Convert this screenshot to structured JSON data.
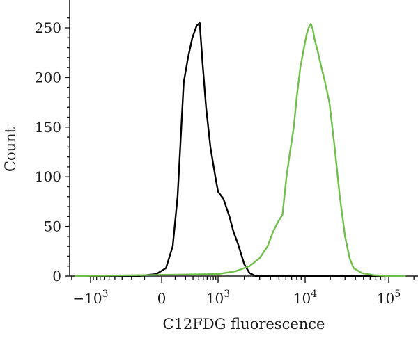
{
  "chart_data": {
    "type": "line",
    "xlabel": "C12FDG fluorescence",
    "ylabel": "Count",
    "x_scale": "biexponential",
    "y_scale": "linear",
    "ylim": [
      0,
      270
    ],
    "yticks": [
      0,
      50,
      100,
      150,
      200,
      250
    ],
    "xticks": [
      {
        "value": -1000,
        "base": "−10",
        "exp": "3"
      },
      {
        "value": 0,
        "base": "0",
        "exp": ""
      },
      {
        "value": 1000,
        "base": "10",
        "exp": "3"
      },
      {
        "value": 10000,
        "base": "10",
        "exp": "4"
      },
      {
        "value": 100000,
        "base": "10",
        "exp": "5"
      }
    ],
    "grid": false,
    "legend": "none",
    "series": [
      {
        "color": "#000000",
        "points": [
          [
            -1800,
            0
          ],
          [
            -150,
            0
          ],
          [
            -30,
            2
          ],
          [
            30,
            8
          ],
          [
            80,
            30
          ],
          [
            120,
            80
          ],
          [
            150,
            140
          ],
          [
            180,
            195
          ],
          [
            230,
            220
          ],
          [
            290,
            240
          ],
          [
            360,
            252
          ],
          [
            420,
            255
          ],
          [
            480,
            215
          ],
          [
            570,
            170
          ],
          [
            700,
            130
          ],
          [
            880,
            100
          ],
          [
            1000,
            85
          ],
          [
            1150,
            78
          ],
          [
            1350,
            60
          ],
          [
            1500,
            45
          ],
          [
            1700,
            32
          ],
          [
            2000,
            12
          ],
          [
            2300,
            3
          ],
          [
            2700,
            0
          ],
          [
            160000,
            0
          ]
        ]
      },
      {
        "color": "#6fbf4a",
        "points": [
          [
            -1800,
            0
          ],
          [
            1000,
            2
          ],
          [
            1600,
            5
          ],
          [
            2300,
            10
          ],
          [
            3000,
            18
          ],
          [
            3700,
            30
          ],
          [
            4300,
            45
          ],
          [
            4900,
            55
          ],
          [
            5500,
            62
          ],
          [
            6100,
            100
          ],
          [
            6700,
            125
          ],
          [
            7400,
            150
          ],
          [
            8000,
            180
          ],
          [
            8800,
            210
          ],
          [
            9600,
            228
          ],
          [
            10400,
            243
          ],
          [
            11000,
            250
          ],
          [
            11700,
            254
          ],
          [
            12300,
            249
          ],
          [
            13000,
            238
          ],
          [
            14000,
            228
          ],
          [
            15500,
            212
          ],
          [
            17000,
            198
          ],
          [
            19500,
            175
          ],
          [
            22500,
            130
          ],
          [
            26000,
            80
          ],
          [
            30000,
            40
          ],
          [
            34000,
            18
          ],
          [
            38000,
            8
          ],
          [
            48000,
            3
          ],
          [
            65000,
            1
          ],
          [
            100000,
            0
          ],
          [
            160000,
            0
          ]
        ]
      }
    ]
  }
}
